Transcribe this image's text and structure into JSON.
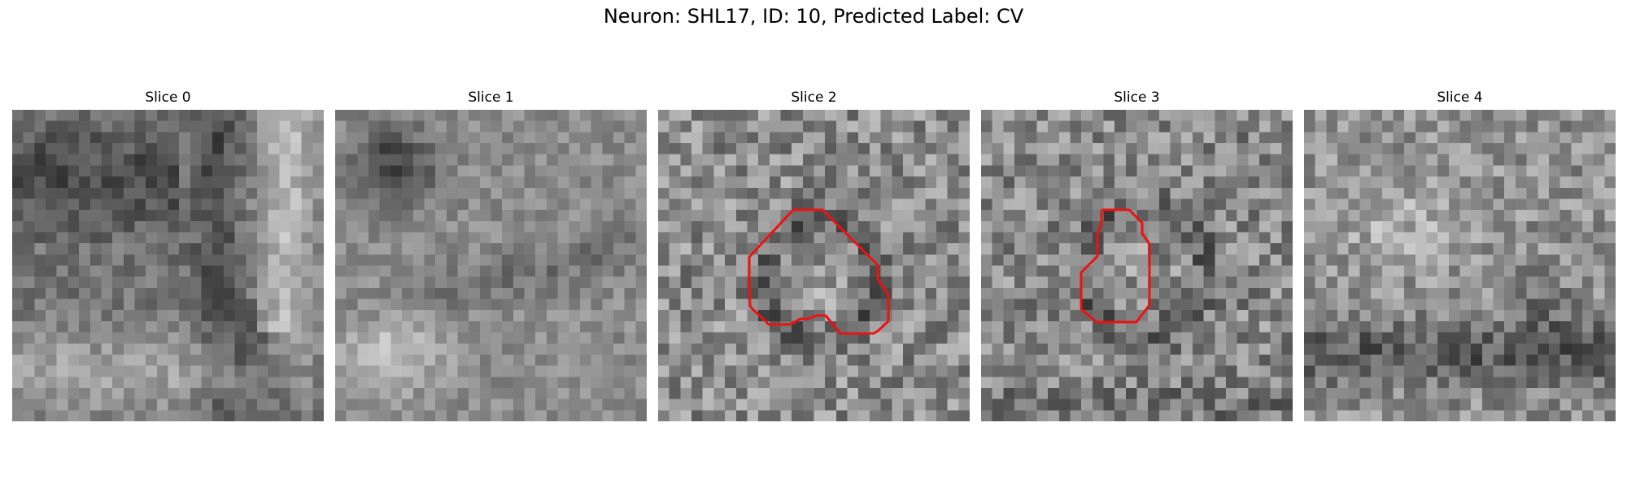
{
  "figure": {
    "title": "Neuron: SHL17, ID: 10, Predicted Label: CV"
  },
  "slices": [
    {
      "title": "Slice 0",
      "has_contour": false
    },
    {
      "title": "Slice 1",
      "has_contour": false
    },
    {
      "title": "Slice 2",
      "has_contour": true
    },
    {
      "title": "Slice 3",
      "has_contour": true
    },
    {
      "title": "Slice 4",
      "has_contour": false
    }
  ],
  "colors": {
    "contour": "#ee1111",
    "background": "#ffffff"
  },
  "image": {
    "colormap": "gray",
    "grid_cells": 28
  }
}
